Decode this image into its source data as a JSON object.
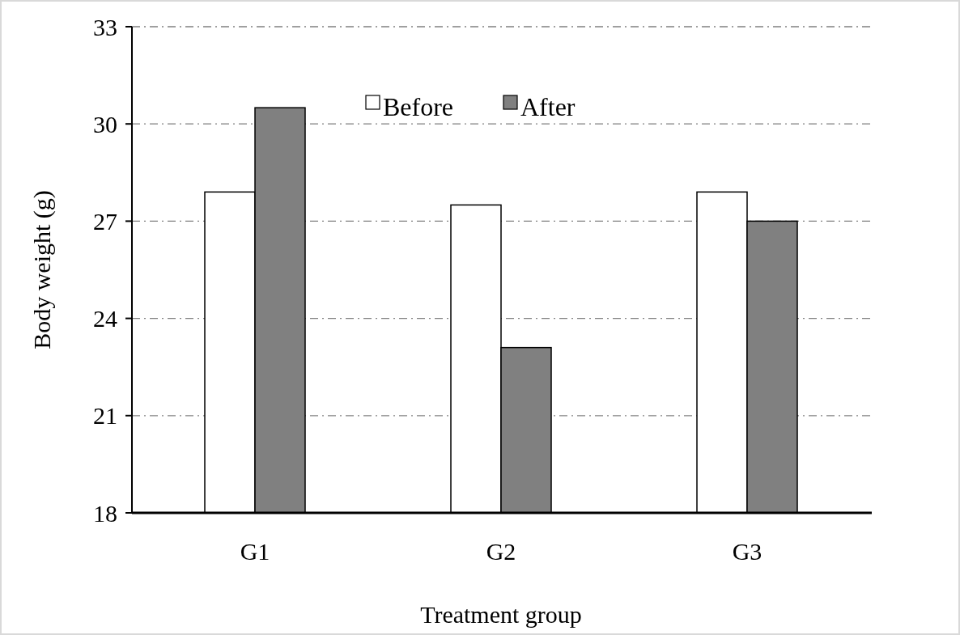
{
  "chart_data": {
    "type": "bar",
    "xlabel": "Treatment group",
    "ylabel": "Body weight (g)",
    "categories": [
      "G1",
      "G2",
      "G3"
    ],
    "series": [
      {
        "name": "Before",
        "color": "#ffffff",
        "values": [
          27.9,
          27.5,
          27.9
        ]
      },
      {
        "name": "After",
        "color": "#808080",
        "values": [
          30.5,
          23.1,
          27.0
        ]
      }
    ],
    "ylim": [
      18,
      33
    ],
    "yticks": [
      18,
      21,
      24,
      27,
      30,
      33
    ],
    "grid": "y",
    "legend": "top",
    "line_style": "dashdot"
  }
}
